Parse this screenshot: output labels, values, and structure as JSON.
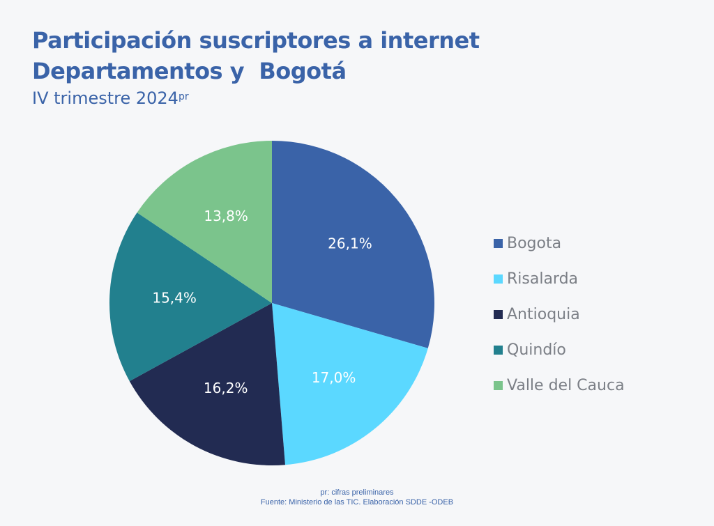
{
  "header": {
    "title_line1": "Participación suscriptores a internet",
    "title_line2": "Departamentos y  Bogotá",
    "subtitle": "IV trimestre 2024",
    "subtitle_sup": "pr"
  },
  "chart_data": {
    "type": "pie",
    "title": "Participación suscriptores a internet Departamentos y  Bogotá",
    "subtitle": "IV trimestre 2024pr",
    "categories": [
      "Bogota",
      "Risalarda",
      "Antioquia",
      "Quindío",
      "Valle del Cauca"
    ],
    "values": [
      26.1,
      17.0,
      16.2,
      15.4,
      13.8
    ],
    "labels": [
      "26,1%",
      "17,0%",
      "16,2%",
      "15,4%",
      "13,8%"
    ],
    "colors": [
      "#3a63a8",
      "#5bd8ff",
      "#222b52",
      "#22808e",
      "#7bc48c"
    ],
    "start_angle": "12 o'clock",
    "direction": "clockwise",
    "legend_position": "right"
  },
  "legend": {
    "items": [
      {
        "label": "Bogota",
        "color": "#3a63a8"
      },
      {
        "label": "Risalarda",
        "color": "#5bd8ff"
      },
      {
        "label": "Antioquia",
        "color": "#222b52"
      },
      {
        "label": "Quindío",
        "color": "#22808e"
      },
      {
        "label": "Valle del Cauca",
        "color": "#7bc48c"
      }
    ]
  },
  "footer": {
    "note": "pr: cifras preliminares",
    "source": "Fuente: Ministerio de las TIC. Elaboración SDDE -ODEB"
  }
}
